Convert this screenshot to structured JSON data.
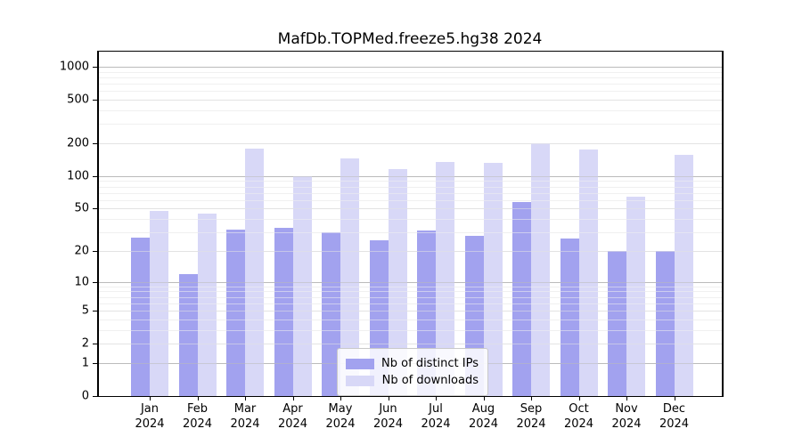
{
  "title": "MafDb.TOPMed.freeze5.hg38 2024",
  "colors": {
    "distinct_ips": "#a2a2ef",
    "downloads": "#d8d8f7",
    "grid_major_power10": "#bbbbbb",
    "grid_major_other": "#e3e3e3",
    "grid_minor": "#f0f0f0"
  },
  "legend": {
    "items": [
      {
        "label": "Nb of distinct IPs",
        "color": "#a2a2ef"
      },
      {
        "label": "Nb of downloads",
        "color": "#d8d8f7"
      }
    ]
  },
  "chart_data": {
    "type": "bar",
    "title": "MafDb.TOPMed.freeze5.hg38 2024",
    "categories": [
      "Jan 2024",
      "Feb 2024",
      "Mar 2024",
      "Apr 2024",
      "May 2024",
      "Jun 2024",
      "Jul 2024",
      "Aug 2024",
      "Sep 2024",
      "Oct 2024",
      "Nov 2024",
      "Dec 2024"
    ],
    "series": [
      {
        "name": "Nb of distinct IPs",
        "color": "#a2a2ef",
        "values": [
          27,
          12,
          32,
          33,
          30,
          25,
          31,
          28,
          58,
          26,
          20,
          20
        ]
      },
      {
        "name": "Nb of downloads",
        "color": "#d8d8f7",
        "values": [
          48,
          45,
          178,
          100,
          146,
          115,
          135,
          132,
          200,
          176,
          65,
          158
        ]
      }
    ],
    "xlabel": "",
    "ylabel": "",
    "yscale": "log1p",
    "yticks": [
      0,
      1,
      2,
      5,
      10,
      20,
      50,
      100,
      200,
      500,
      1000
    ],
    "minor_grid_values": [
      3,
      4,
      6,
      7,
      8,
      9,
      30,
      40,
      60,
      70,
      80,
      90,
      300,
      400,
      600,
      700,
      800,
      900
    ],
    "ylim": [
      0,
      1200
    ],
    "grid": true,
    "legend_position": "lower center"
  }
}
